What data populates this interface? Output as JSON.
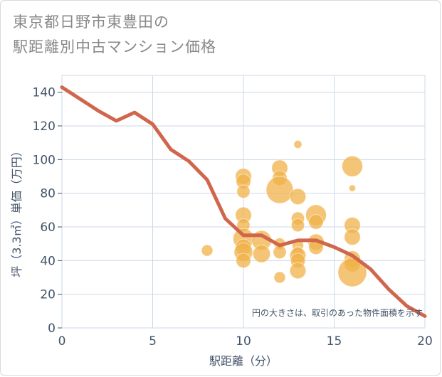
{
  "chart_data": {
    "type": "scatter",
    "title_lines": [
      "東京都日野市東豊田の",
      "駅距離別中古マンション価格"
    ],
    "xlabel": "駅距離（分）",
    "ylabel": "坪（3.3㎡）単価（万円）",
    "xlim": [
      0,
      20
    ],
    "ylim": [
      0,
      150
    ],
    "x_ticks": [
      0,
      5,
      10,
      15,
      20
    ],
    "y_ticks": [
      0,
      20,
      40,
      60,
      80,
      100,
      120,
      140
    ],
    "grid": true,
    "annotation": "円の大きさは、取引のあった物件面積を示す",
    "colors": {
      "bubble": "#f0b14a",
      "line": "#d0664c",
      "grid": "#cdd8e4",
      "axis_text": "#44546a"
    },
    "series": [
      {
        "type": "line",
        "x": [
          0,
          1,
          2,
          3,
          4,
          5,
          6,
          7,
          8,
          9,
          10,
          11,
          12,
          13,
          14,
          15,
          16,
          17,
          18,
          19,
          20
        ],
        "y": [
          143,
          136,
          129,
          123,
          128,
          121,
          106,
          99,
          88,
          65,
          55,
          55,
          49,
          52,
          52,
          48,
          43,
          35,
          23,
          13,
          7
        ]
      },
      {
        "type": "bubble",
        "points": [
          {
            "x": 8,
            "y": 46,
            "size": 3
          },
          {
            "x": 10,
            "y": 90,
            "size": 6
          },
          {
            "x": 10,
            "y": 87,
            "size": 5
          },
          {
            "x": 10,
            "y": 81,
            "size": 4
          },
          {
            "x": 10,
            "y": 67,
            "size": 6
          },
          {
            "x": 10,
            "y": 61,
            "size": 4
          },
          {
            "x": 10,
            "y": 53,
            "size": 10
          },
          {
            "x": 10,
            "y": 48,
            "size": 6
          },
          {
            "x": 10,
            "y": 45,
            "size": 8
          },
          {
            "x": 10,
            "y": 40,
            "size": 5
          },
          {
            "x": 11,
            "y": 52,
            "size": 9
          },
          {
            "x": 11,
            "y": 44,
            "size": 7
          },
          {
            "x": 12,
            "y": 95,
            "size": 6
          },
          {
            "x": 12,
            "y": 89,
            "size": 5
          },
          {
            "x": 12,
            "y": 82,
            "size": 17
          },
          {
            "x": 12,
            "y": 50,
            "size": 3
          },
          {
            "x": 12,
            "y": 45,
            "size": 4
          },
          {
            "x": 12,
            "y": 30,
            "size": 3
          },
          {
            "x": 13,
            "y": 109,
            "size": 1.5
          },
          {
            "x": 13,
            "y": 78,
            "size": 6
          },
          {
            "x": 13,
            "y": 65,
            "size": 4
          },
          {
            "x": 13,
            "y": 61,
            "size": 4
          },
          {
            "x": 13,
            "y": 49,
            "size": 3
          },
          {
            "x": 13,
            "y": 45,
            "size": 3
          },
          {
            "x": 13,
            "y": 43,
            "size": 6
          },
          {
            "x": 13,
            "y": 40,
            "size": 5
          },
          {
            "x": 13,
            "y": 34,
            "size": 6
          },
          {
            "x": 14,
            "y": 67,
            "size": 10
          },
          {
            "x": 14,
            "y": 63,
            "size": 5
          },
          {
            "x": 14,
            "y": 51,
            "size": 6
          },
          {
            "x": 14,
            "y": 48,
            "size": 5
          },
          {
            "x": 16,
            "y": 96,
            "size": 10
          },
          {
            "x": 16,
            "y": 83,
            "size": 1
          },
          {
            "x": 16,
            "y": 61,
            "size": 6
          },
          {
            "x": 16,
            "y": 54,
            "size": 6
          },
          {
            "x": 16,
            "y": 41,
            "size": 6
          },
          {
            "x": 16,
            "y": 38,
            "size": 6
          },
          {
            "x": 16,
            "y": 33,
            "size": 19
          }
        ]
      }
    ]
  }
}
